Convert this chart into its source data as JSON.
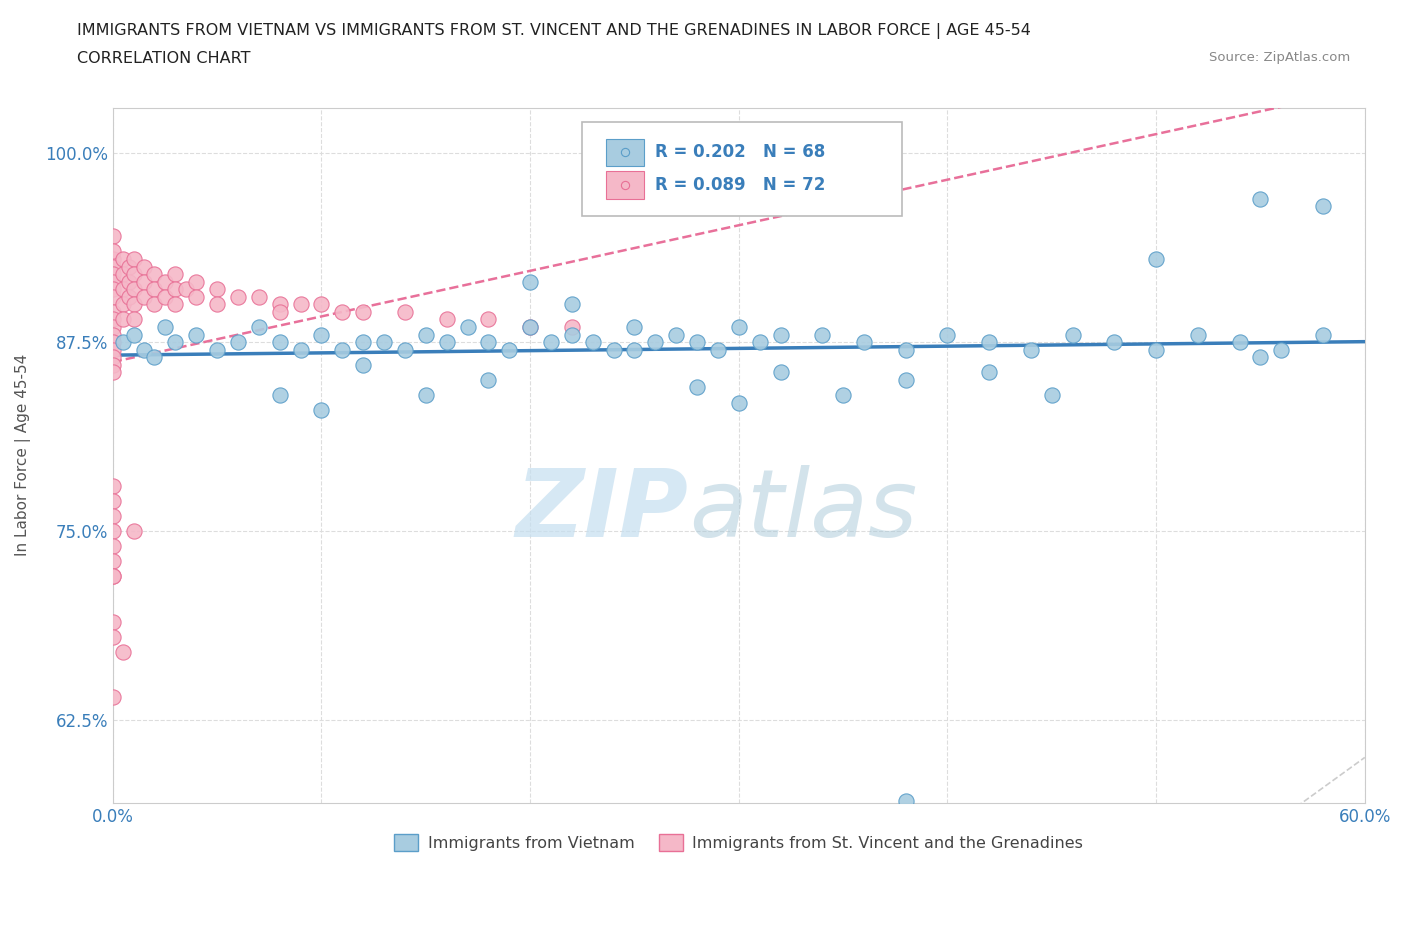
{
  "title_line1": "IMMIGRANTS FROM VIETNAM VS IMMIGRANTS FROM ST. VINCENT AND THE GRENADINES IN LABOR FORCE | AGE 45-54",
  "title_line2": "CORRELATION CHART",
  "source_text": "Source: ZipAtlas.com",
  "ylabel": "In Labor Force | Age 45-54",
  "x_min": 0.0,
  "x_max": 0.6,
  "y_min": 0.57,
  "y_max": 1.03,
  "x_ticks": [
    0.0,
    0.1,
    0.2,
    0.3,
    0.4,
    0.5,
    0.6
  ],
  "x_tick_labels": [
    "0.0%",
    "",
    "",
    "",
    "",
    "",
    "60.0%"
  ],
  "y_ticks": [
    0.625,
    0.75,
    0.875,
    1.0
  ],
  "y_tick_labels": [
    "62.5%",
    "75.0%",
    "87.5%",
    "100.0%"
  ],
  "color_vietnam": "#a8cce0",
  "color_vietnam_edge": "#5b9ec9",
  "color_stv": "#f5b8c8",
  "color_stv_edge": "#e87096",
  "color_vietnam_line": "#3a7eba",
  "color_stv_line": "#e8709a",
  "color_diagonal": "#d0d0d0",
  "legend_r1": "R = 0.202",
  "legend_n1": "N = 68",
  "legend_r2": "R = 0.089",
  "legend_n2": "N = 72",
  "vietnam_x": [
    0.005,
    0.01,
    0.015,
    0.02,
    0.025,
    0.03,
    0.04,
    0.05,
    0.06,
    0.07,
    0.08,
    0.09,
    0.1,
    0.11,
    0.12,
    0.13,
    0.14,
    0.15,
    0.16,
    0.17,
    0.18,
    0.19,
    0.2,
    0.21,
    0.22,
    0.23,
    0.24,
    0.25,
    0.26,
    0.27,
    0.28,
    0.29,
    0.3,
    0.31,
    0.32,
    0.34,
    0.36,
    0.38,
    0.4,
    0.42,
    0.44,
    0.46,
    0.48,
    0.5,
    0.52,
    0.54,
    0.56,
    0.58,
    0.08,
    0.12,
    0.18,
    0.22,
    0.25,
    0.28,
    0.32,
    0.38,
    0.42,
    0.5,
    0.55,
    0.58,
    0.2,
    0.15,
    0.1,
    0.3,
    0.35,
    0.45,
    0.38,
    0.55
  ],
  "vietnam_y": [
    0.875,
    0.88,
    0.87,
    0.865,
    0.885,
    0.875,
    0.88,
    0.87,
    0.875,
    0.885,
    0.875,
    0.87,
    0.88,
    0.87,
    0.875,
    0.875,
    0.87,
    0.88,
    0.875,
    0.885,
    0.875,
    0.87,
    0.885,
    0.875,
    0.88,
    0.875,
    0.87,
    0.885,
    0.875,
    0.88,
    0.875,
    0.87,
    0.885,
    0.875,
    0.88,
    0.88,
    0.875,
    0.87,
    0.88,
    0.875,
    0.87,
    0.88,
    0.875,
    0.87,
    0.88,
    0.875,
    0.87,
    0.88,
    0.84,
    0.86,
    0.85,
    0.9,
    0.87,
    0.845,
    0.855,
    0.85,
    0.855,
    0.93,
    0.865,
    0.965,
    0.915,
    0.84,
    0.83,
    0.835,
    0.84,
    0.84,
    0.571,
    0.97
  ],
  "stv_x": [
    0.0,
    0.0,
    0.0,
    0.0,
    0.0,
    0.0,
    0.0,
    0.0,
    0.0,
    0.0,
    0.0,
    0.0,
    0.0,
    0.0,
    0.0,
    0.0,
    0.0,
    0.0,
    0.005,
    0.005,
    0.005,
    0.005,
    0.005,
    0.008,
    0.008,
    0.008,
    0.01,
    0.01,
    0.01,
    0.01,
    0.01,
    0.015,
    0.015,
    0.015,
    0.02,
    0.02,
    0.02,
    0.025,
    0.025,
    0.03,
    0.03,
    0.03,
    0.035,
    0.04,
    0.04,
    0.05,
    0.05,
    0.06,
    0.07,
    0.08,
    0.08,
    0.09,
    0.1,
    0.11,
    0.12,
    0.14,
    0.16,
    0.18,
    0.2,
    0.22,
    0.005,
    0.01,
    0.0,
    0.0,
    0.0,
    0.0,
    0.0,
    0.0,
    0.0,
    0.0,
    0.0,
    0.0
  ],
  "stv_y": [
    0.93,
    0.945,
    0.935,
    0.925,
    0.92,
    0.915,
    0.91,
    0.905,
    0.895,
    0.89,
    0.885,
    0.88,
    0.875,
    0.87,
    0.865,
    0.86,
    0.855,
    0.69,
    0.93,
    0.92,
    0.91,
    0.9,
    0.89,
    0.925,
    0.915,
    0.905,
    0.93,
    0.92,
    0.91,
    0.9,
    0.89,
    0.925,
    0.915,
    0.905,
    0.92,
    0.91,
    0.9,
    0.915,
    0.905,
    0.92,
    0.91,
    0.9,
    0.91,
    0.915,
    0.905,
    0.91,
    0.9,
    0.905,
    0.905,
    0.9,
    0.895,
    0.9,
    0.9,
    0.895,
    0.895,
    0.895,
    0.89,
    0.89,
    0.885,
    0.885,
    0.67,
    0.75,
    0.78,
    0.77,
    0.76,
    0.75,
    0.74,
    0.73,
    0.72,
    0.72,
    0.68,
    0.64
  ]
}
